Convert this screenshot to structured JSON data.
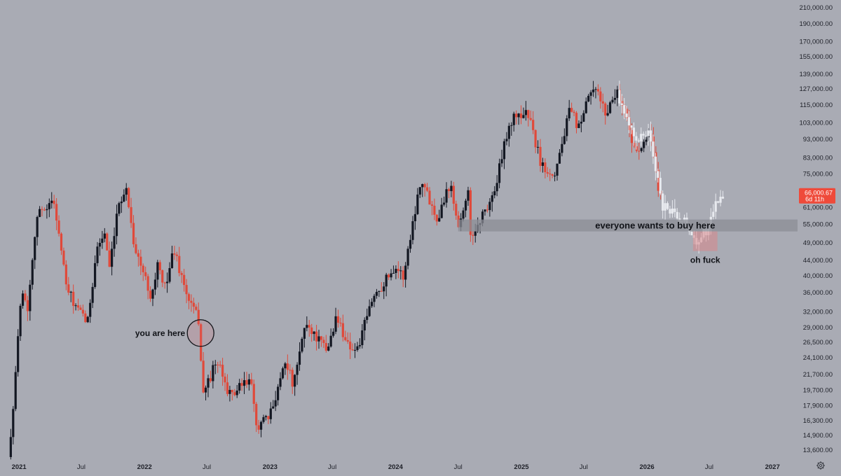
{
  "chart_data": {
    "type": "candlestick",
    "title": "",
    "xlabel": "",
    "ylabel": "",
    "y_scale": "log",
    "ylim": [
      12500,
      215000
    ],
    "xlim": [
      "2020-11-23",
      "2027-03-15"
    ],
    "grid": false,
    "colors": {
      "background": "#a9abb4",
      "up": "#131722",
      "down": "#e0493a",
      "projection": "#e8eaef",
      "zone": "#8c8e96",
      "price_badge": "#ef4a3a"
    },
    "y_ticks": [
      {
        "value": 210000,
        "label": "210,000.00"
      },
      {
        "value": 190000,
        "label": "190,000.00"
      },
      {
        "value": 170000,
        "label": "170,000.00"
      },
      {
        "value": 155000,
        "label": "155,000.00"
      },
      {
        "value": 139000,
        "label": "139,000.00"
      },
      {
        "value": 127000,
        "label": "127,000.00"
      },
      {
        "value": 115000,
        "label": "115,000.00"
      },
      {
        "value": 103000,
        "label": "103,000.00"
      },
      {
        "value": 93000,
        "label": "93,000.00"
      },
      {
        "value": 83000,
        "label": "83,000.00"
      },
      {
        "value": 75000,
        "label": "75,000.00"
      },
      {
        "value": 61000,
        "label": "61,000.00"
      },
      {
        "value": 55000,
        "label": "55,000.00"
      },
      {
        "value": 49000,
        "label": "49,000.00"
      },
      {
        "value": 44000,
        "label": "44,000.00"
      },
      {
        "value": 40000,
        "label": "40,000.00"
      },
      {
        "value": 36000,
        "label": "36,000.00"
      },
      {
        "value": 32000,
        "label": "32,000.00"
      },
      {
        "value": 29000,
        "label": "29,000.00"
      },
      {
        "value": 26500,
        "label": "26,500.00"
      },
      {
        "value": 24100,
        "label": "24,100.00"
      },
      {
        "value": 21700,
        "label": "21,700.00"
      },
      {
        "value": 19700,
        "label": "19,700.00"
      },
      {
        "value": 17900,
        "label": "17,900.00"
      },
      {
        "value": 16300,
        "label": "16,300.00"
      },
      {
        "value": 14900,
        "label": "14,900.00"
      },
      {
        "value": 13600,
        "label": "13,600.00"
      }
    ],
    "x_ticks": [
      {
        "date": "2021-01-01",
        "label": "2021",
        "bold": true
      },
      {
        "date": "2021-07-01",
        "label": "Jul",
        "bold": false
      },
      {
        "date": "2022-01-01",
        "label": "2022",
        "bold": true
      },
      {
        "date": "2022-07-01",
        "label": "Jul",
        "bold": false
      },
      {
        "date": "2023-01-01",
        "label": "2023",
        "bold": true
      },
      {
        "date": "2023-07-01",
        "label": "Jul",
        "bold": false
      },
      {
        "date": "2024-01-01",
        "label": "2024",
        "bold": true
      },
      {
        "date": "2024-07-01",
        "label": "Jul",
        "bold": false
      },
      {
        "date": "2025-01-01",
        "label": "2025",
        "bold": true
      },
      {
        "date": "2025-07-01",
        "label": "Jul",
        "bold": false
      },
      {
        "date": "2026-01-01",
        "label": "2026",
        "bold": true
      },
      {
        "date": "2026-07-01",
        "label": "Jul",
        "bold": false
      },
      {
        "date": "2027-01-01",
        "label": "2027",
        "bold": true
      }
    ],
    "price_path": [
      [
        "2020-12-01",
        13000
      ],
      [
        "2020-12-20",
        20000
      ],
      [
        "2021-01-08",
        38000
      ],
      [
        "2021-01-25",
        32000
      ],
      [
        "2021-02-20",
        57000
      ],
      [
        "2021-03-13",
        61000
      ],
      [
        "2021-04-14",
        63000
      ],
      [
        "2021-05-19",
        37000
      ],
      [
        "2021-06-22",
        32000
      ],
      [
        "2021-07-20",
        30000
      ],
      [
        "2021-08-14",
        47000
      ],
      [
        "2021-09-07",
        52000
      ],
      [
        "2021-09-21",
        41000
      ],
      [
        "2021-10-20",
        64000
      ],
      [
        "2021-11-10",
        68000
      ],
      [
        "2021-12-04",
        47000
      ],
      [
        "2022-01-22",
        35000
      ],
      [
        "2022-02-10",
        44000
      ],
      [
        "2022-02-24",
        36000
      ],
      [
        "2022-03-28",
        47000
      ],
      [
        "2022-05-05",
        35000
      ],
      [
        "2022-06-10",
        30000
      ],
      [
        "2022-06-18",
        19000
      ],
      [
        "2022-07-30",
        23500
      ],
      [
        "2022-09-07",
        19000
      ],
      [
        "2022-11-05",
        21000
      ],
      [
        "2022-11-21",
        15800
      ],
      [
        "2022-12-30",
        16500
      ],
      [
        "2023-02-15",
        24000
      ],
      [
        "2023-03-10",
        20000
      ],
      [
        "2023-04-14",
        30000
      ],
      [
        "2023-06-15",
        25000
      ],
      [
        "2023-07-13",
        31000
      ],
      [
        "2023-08-17",
        26000
      ],
      [
        "2023-09-11",
        25000
      ],
      [
        "2023-10-25",
        34500
      ],
      [
        "2023-12-31",
        42500
      ],
      [
        "2024-01-23",
        39500
      ],
      [
        "2024-03-14",
        73000
      ],
      [
        "2024-05-01",
        57000
      ],
      [
        "2024-06-07",
        71000
      ],
      [
        "2024-07-05",
        54000
      ],
      [
        "2024-07-29",
        69000
      ],
      [
        "2024-08-05",
        50000
      ],
      [
        "2024-10-15",
        67000
      ],
      [
        "2024-11-22",
        99000
      ],
      [
        "2024-12-17",
        108000
      ],
      [
        "2025-01-20",
        109000
      ],
      [
        "2025-02-28",
        79000
      ],
      [
        "2025-04-07",
        75000
      ],
      [
        "2025-05-22",
        111000
      ],
      [
        "2025-06-22",
        98000
      ],
      [
        "2025-07-14",
        122000
      ],
      [
        "2025-08-14",
        124000
      ],
      [
        "2025-09-01",
        108000
      ],
      [
        "2025-10-06",
        126000
      ],
      [
        "2025-11-01",
        108000
      ],
      [
        "2025-12-01",
        84000
      ],
      [
        "2026-01-15",
        96000
      ],
      [
        "2026-02-05",
        65000
      ],
      [
        "2026-02-16",
        67000
      ]
    ],
    "projection_path": [
      [
        "2025-10-06",
        126000
      ],
      [
        "2025-11-10",
        98000
      ],
      [
        "2025-12-08",
        92000
      ],
      [
        "2026-01-05",
        97000
      ],
      [
        "2026-02-15",
        62000
      ],
      [
        "2026-03-20",
        58000
      ],
      [
        "2026-04-20",
        56000
      ],
      [
        "2026-05-25",
        50000
      ],
      [
        "2026-06-20",
        52000
      ],
      [
        "2026-07-15",
        60000
      ],
      [
        "2026-08-15",
        68000
      ]
    ],
    "last_price": {
      "value": 66000.67,
      "label": "66,000.67",
      "countdown": "6d 11h"
    },
    "zone": {
      "low": 52500,
      "high": 56500,
      "start": "2024-07-01",
      "end": "2027-03-15",
      "label": "everyone wants to buy here"
    },
    "highlight_box": {
      "low": 46500,
      "high": 52500,
      "start": "2026-05-15",
      "end": "2026-07-25",
      "label": "oh fuck"
    },
    "marker": {
      "date": "2022-06-13",
      "value": 28000,
      "label": "you are here"
    }
  },
  "ui": {
    "settings_icon": "gear-icon"
  }
}
